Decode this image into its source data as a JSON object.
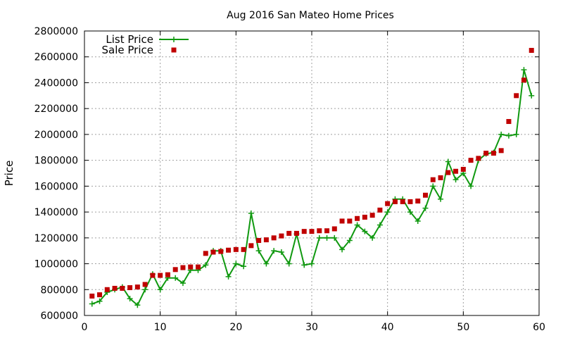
{
  "chart_data": {
    "type": "line",
    "title": "Aug 2016 San Mateo Home Prices",
    "xlabel": "",
    "ylabel": "Price",
    "xlim": [
      0,
      60
    ],
    "ylim": [
      600000,
      2800000
    ],
    "x_ticks": [
      0,
      10,
      20,
      30,
      40,
      50,
      60
    ],
    "y_ticks": [
      600000,
      800000,
      1000000,
      1200000,
      1400000,
      1600000,
      1800000,
      2000000,
      2200000,
      2400000,
      2600000,
      2800000
    ],
    "grid": true,
    "legend_position": "top-left",
    "series": [
      {
        "name": "List Price",
        "style": "line-with-plus-markers",
        "color": "#109910",
        "x": [
          1,
          2,
          3,
          4,
          5,
          6,
          7,
          8,
          9,
          10,
          11,
          12,
          13,
          14,
          15,
          16,
          17,
          18,
          19,
          20,
          21,
          22,
          23,
          24,
          25,
          26,
          27,
          28,
          29,
          30,
          31,
          32,
          33,
          34,
          35,
          36,
          37,
          38,
          39,
          40,
          41,
          42,
          43,
          44,
          45,
          46,
          47,
          48,
          49,
          50,
          51,
          52,
          53,
          54,
          55,
          56,
          57,
          58,
          59
        ],
        "y": [
          690000,
          710000,
          780000,
          800000,
          820000,
          730000,
          680000,
          800000,
          920000,
          800000,
          890000,
          890000,
          850000,
          950000,
          950000,
          990000,
          1100000,
          1100000,
          900000,
          1000000,
          980000,
          1390000,
          1100000,
          1000000,
          1100000,
          1090000,
          1000000,
          1230000,
          990000,
          1000000,
          1200000,
          1200000,
          1200000,
          1110000,
          1180000,
          1300000,
          1250000,
          1200000,
          1300000,
          1400000,
          1500000,
          1500000,
          1400000,
          1330000,
          1430000,
          1600000,
          1500000,
          1790000,
          1650000,
          1700000,
          1600000,
          1800000,
          1850000,
          1860000,
          2000000,
          1990000,
          2000000,
          2500000,
          2300000
        ]
      },
      {
        "name": "Sale Price",
        "style": "square-markers",
        "color": "#c00000",
        "x": [
          1,
          2,
          3,
          4,
          5,
          6,
          7,
          8,
          9,
          10,
          11,
          12,
          13,
          14,
          15,
          16,
          17,
          18,
          19,
          20,
          21,
          22,
          23,
          24,
          25,
          26,
          27,
          28,
          29,
          30,
          31,
          32,
          33,
          34,
          35,
          36,
          37,
          38,
          39,
          40,
          41,
          42,
          43,
          44,
          45,
          46,
          47,
          48,
          49,
          50,
          51,
          52,
          53,
          54,
          55,
          56,
          57,
          58,
          59
        ],
        "y": [
          750000,
          760000,
          800000,
          810000,
          810000,
          815000,
          820000,
          840000,
          910000,
          910000,
          915000,
          955000,
          970000,
          975000,
          975000,
          1080000,
          1090000,
          1095000,
          1105000,
          1110000,
          1110000,
          1140000,
          1180000,
          1185000,
          1200000,
          1215000,
          1235000,
          1235000,
          1250000,
          1250000,
          1255000,
          1255000,
          1270000,
          1330000,
          1330000,
          1350000,
          1360000,
          1375000,
          1415000,
          1465000,
          1480000,
          1480000,
          1480000,
          1485000,
          1530000,
          1650000,
          1665000,
          1705000,
          1715000,
          1730000,
          1800000,
          1815000,
          1855000,
          1855000,
          1875000,
          2100000,
          2300000,
          2420000,
          2650000
        ]
      }
    ]
  }
}
